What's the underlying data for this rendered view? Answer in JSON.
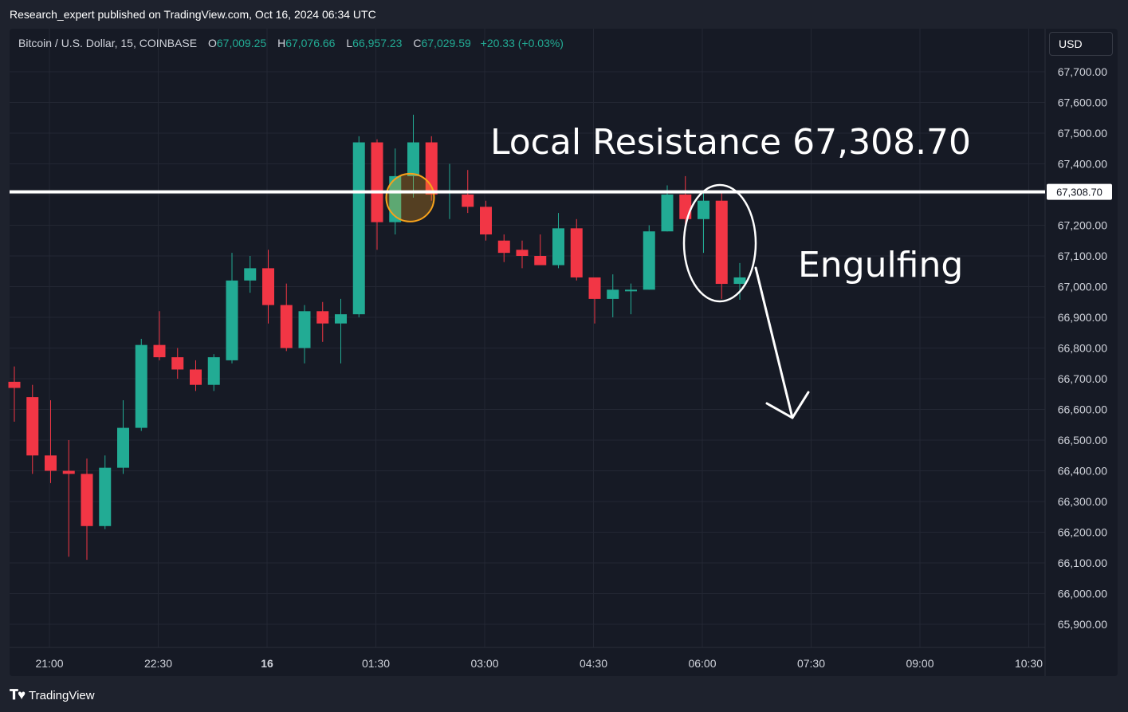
{
  "header": {
    "publish_line": "Research_expert published on TradingView.com, Oct 16, 2024 06:34 UTC"
  },
  "legend": {
    "symbol": "Bitcoin / U.S. Dollar, 15, COINBASE",
    "open_label": "O",
    "open_value": "67,009.25",
    "high_label": "H",
    "high_value": "67,076.66",
    "low_label": "L",
    "low_value": "66,957.23",
    "close_label": "C",
    "close_value": "67,029.59",
    "change": "+20.33 (+0.03%)"
  },
  "currency_button": {
    "label": "USD"
  },
  "footer": {
    "brand": "TradingView"
  },
  "colors": {
    "up": "#22ab94",
    "down": "#f23645",
    "grid": "#232733",
    "axis_text": "#d1d4dc",
    "annotation": "#ffffff",
    "highlight": "#f7a21b"
  },
  "chart_data": {
    "type": "candlestick",
    "interval": "15",
    "y_ticks": [
      65900,
      66000,
      66100,
      66200,
      66300,
      66400,
      66500,
      66600,
      66700,
      66800,
      66900,
      67000,
      67100,
      67200,
      67300,
      67400,
      67500,
      67600,
      67700
    ],
    "y_tick_labels": [
      "65,900.00",
      "66,000.00",
      "66,100.00",
      "66,200.00",
      "66,300.00",
      "66,400.00",
      "66,500.00",
      "66,600.00",
      "66,700.00",
      "66,800.00",
      "66,900.00",
      "67,000.00",
      "67,100.00",
      "67,200.00",
      "67,300.00",
      "67,400.00",
      "67,500.00",
      "67,600.00",
      "67,700.00"
    ],
    "x_ticks": [
      {
        "index": 2,
        "label": "21:00",
        "bold": false
      },
      {
        "index": 8,
        "label": "22:30",
        "bold": false
      },
      {
        "index": 14,
        "label": "16",
        "bold": true
      },
      {
        "index": 20,
        "label": "01:30",
        "bold": false
      },
      {
        "index": 26,
        "label": "03:00",
        "bold": false
      },
      {
        "index": 32,
        "label": "04:30",
        "bold": false
      },
      {
        "index": 38,
        "label": "06:00",
        "bold": false
      },
      {
        "index": 44,
        "label": "07:30",
        "bold": false
      },
      {
        "index": 50,
        "label": "09:00",
        "bold": false
      },
      {
        "index": 56,
        "label": "10:30",
        "bold": false
      }
    ],
    "candles": [
      {
        "o": 66690,
        "h": 66740,
        "l": 66560,
        "c": 66670
      },
      {
        "o": 66640,
        "h": 66680,
        "l": 66390,
        "c": 66450
      },
      {
        "o": 66450,
        "h": 66630,
        "l": 66360,
        "c": 66400
      },
      {
        "o": 66400,
        "h": 66500,
        "l": 66120,
        "c": 66390
      },
      {
        "o": 66390,
        "h": 66440,
        "l": 66110,
        "c": 66220
      },
      {
        "o": 66220,
        "h": 66450,
        "l": 66210,
        "c": 66410
      },
      {
        "o": 66410,
        "h": 66630,
        "l": 66390,
        "c": 66540
      },
      {
        "o": 66540,
        "h": 66830,
        "l": 66530,
        "c": 66810
      },
      {
        "o": 66810,
        "h": 66920,
        "l": 66760,
        "c": 66770
      },
      {
        "o": 66770,
        "h": 66800,
        "l": 66700,
        "c": 66730
      },
      {
        "o": 66730,
        "h": 66760,
        "l": 66660,
        "c": 66680
      },
      {
        "o": 66680,
        "h": 66780,
        "l": 66660,
        "c": 66770
      },
      {
        "o": 66760,
        "h": 67110,
        "l": 66750,
        "c": 67020
      },
      {
        "o": 67020,
        "h": 67100,
        "l": 66980,
        "c": 67060
      },
      {
        "o": 67060,
        "h": 67120,
        "l": 66880,
        "c": 66940
      },
      {
        "o": 66940,
        "h": 67010,
        "l": 66790,
        "c": 66800
      },
      {
        "o": 66800,
        "h": 66940,
        "l": 66750,
        "c": 66920
      },
      {
        "o": 66920,
        "h": 66950,
        "l": 66820,
        "c": 66880
      },
      {
        "o": 66880,
        "h": 66960,
        "l": 66750,
        "c": 66910
      },
      {
        "o": 66910,
        "h": 67490,
        "l": 66900,
        "c": 67470
      },
      {
        "o": 67470,
        "h": 67480,
        "l": 67120,
        "c": 67210
      },
      {
        "o": 67210,
        "h": 67450,
        "l": 67170,
        "c": 67360
      },
      {
        "o": 67360,
        "h": 67560,
        "l": 67290,
        "c": 67470
      },
      {
        "o": 67470,
        "h": 67490,
        "l": 67280,
        "c": 67300
      },
      {
        "o": 67310,
        "h": 67400,
        "l": 67220,
        "c": 67310
      },
      {
        "o": 67300,
        "h": 67380,
        "l": 67240,
        "c": 67260
      },
      {
        "o": 67260,
        "h": 67280,
        "l": 67150,
        "c": 67170
      },
      {
        "o": 67150,
        "h": 67170,
        "l": 67080,
        "c": 67110
      },
      {
        "o": 67120,
        "h": 67150,
        "l": 67060,
        "c": 67100
      },
      {
        "o": 67100,
        "h": 67170,
        "l": 67080,
        "c": 67070
      },
      {
        "o": 67070,
        "h": 67240,
        "l": 67060,
        "c": 67190
      },
      {
        "o": 67190,
        "h": 67220,
        "l": 67020,
        "c": 67030
      },
      {
        "o": 67030,
        "h": 67030,
        "l": 66880,
        "c": 66960
      },
      {
        "o": 66960,
        "h": 67040,
        "l": 66900,
        "c": 66990
      },
      {
        "o": 66990,
        "h": 67010,
        "l": 66910,
        "c": 66990
      },
      {
        "o": 66990,
        "h": 67200,
        "l": 66990,
        "c": 67180
      },
      {
        "o": 67180,
        "h": 67330,
        "l": 67180,
        "c": 67300
      },
      {
        "o": 67300,
        "h": 67360,
        "l": 67200,
        "c": 67220
      },
      {
        "o": 67220,
        "h": 67310,
        "l": 67110,
        "c": 67280
      },
      {
        "o": 67280,
        "h": 67310,
        "l": 66960,
        "c": 67009
      },
      {
        "o": 67009,
        "h": 67077,
        "l": 66957,
        "c": 67030
      }
    ],
    "resistance": {
      "value": 67308.7,
      "label": "67,308.70"
    },
    "annotations": {
      "resistance_text": "Local Resistance 67,308.70",
      "pattern_text": "Engulfing"
    }
  }
}
